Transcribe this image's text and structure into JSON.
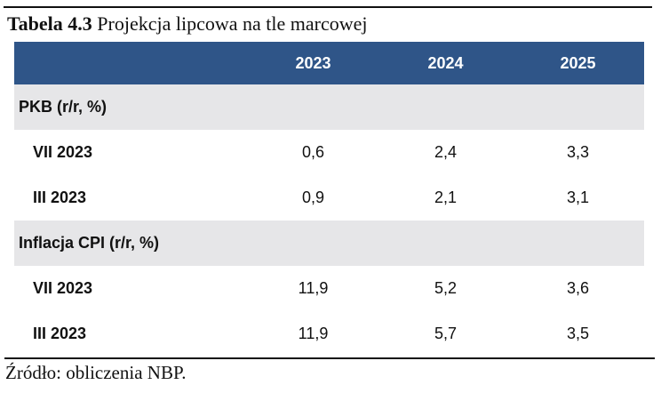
{
  "title": {
    "bold": "Tabela 4.3",
    "rest": " Projekcja lipcowa na tle marcowej"
  },
  "columns": [
    "",
    "2023",
    "2024",
    "2025"
  ],
  "sections": [
    {
      "label": "PKB (r/r, %)",
      "rows": [
        {
          "label": "VII 2023",
          "values": [
            "0,6",
            "2,4",
            "3,3"
          ]
        },
        {
          "label": "III 2023",
          "values": [
            "0,9",
            "2,1",
            "3,1"
          ]
        }
      ]
    },
    {
      "label": "Inflacja CPI (r/r, %)",
      "rows": [
        {
          "label": "VII 2023",
          "values": [
            "11,9",
            "5,2",
            "3,6"
          ]
        },
        {
          "label": "III 2023",
          "values": [
            "11,9",
            "5,7",
            "3,5"
          ]
        }
      ]
    }
  ],
  "source": "Źródło: obliczenia NBP.",
  "colors": {
    "header_bg": "#2f5588",
    "section_bg": "#e6e6e8"
  }
}
